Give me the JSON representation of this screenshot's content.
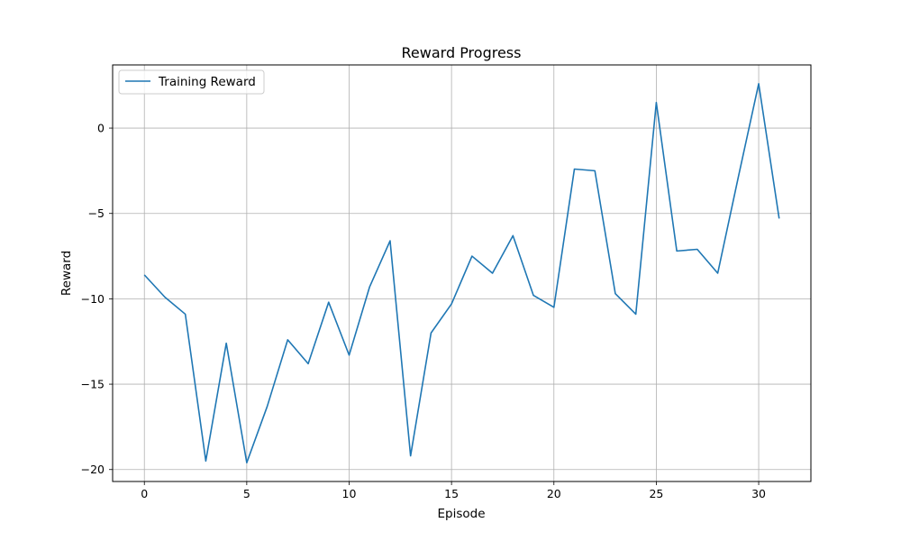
{
  "chart_data": {
    "type": "line",
    "title": "Reward Progress",
    "xlabel": "Episode",
    "ylabel": "Reward",
    "xlim": [
      -1.55,
      32.55
    ],
    "ylim": [
      -20.7,
      3.7
    ],
    "xticks": [
      0,
      5,
      10,
      15,
      20,
      25,
      30
    ],
    "xtick_labels": [
      "0",
      "5",
      "10",
      "15",
      "20",
      "25",
      "30"
    ],
    "yticks": [
      0,
      -5,
      -10,
      -15,
      -20
    ],
    "ytick_labels": [
      "0",
      "−5",
      "−10",
      "−15",
      "−20"
    ],
    "grid": true,
    "legend_position": "upper-left",
    "series": [
      {
        "name": "Training Reward",
        "color": "#1f77b4",
        "x": [
          0,
          1,
          2,
          3,
          4,
          5,
          6,
          7,
          8,
          9,
          10,
          11,
          12,
          13,
          14,
          15,
          16,
          17,
          18,
          19,
          20,
          21,
          22,
          23,
          24,
          25,
          26,
          27,
          28,
          29,
          30,
          31
        ],
        "y": [
          -8.6,
          -9.9,
          -10.9,
          -19.5,
          -12.6,
          -19.6,
          -16.3,
          -12.4,
          -13.8,
          -10.2,
          -13.3,
          -9.3,
          -6.6,
          -19.2,
          -12.0,
          -10.3,
          -7.5,
          -8.5,
          -6.3,
          -9.8,
          -10.5,
          -2.4,
          -2.5,
          -9.7,
          -10.9,
          1.5,
          -7.2,
          -7.1,
          -8.5,
          -2.9,
          2.6,
          -5.3
        ]
      }
    ]
  }
}
